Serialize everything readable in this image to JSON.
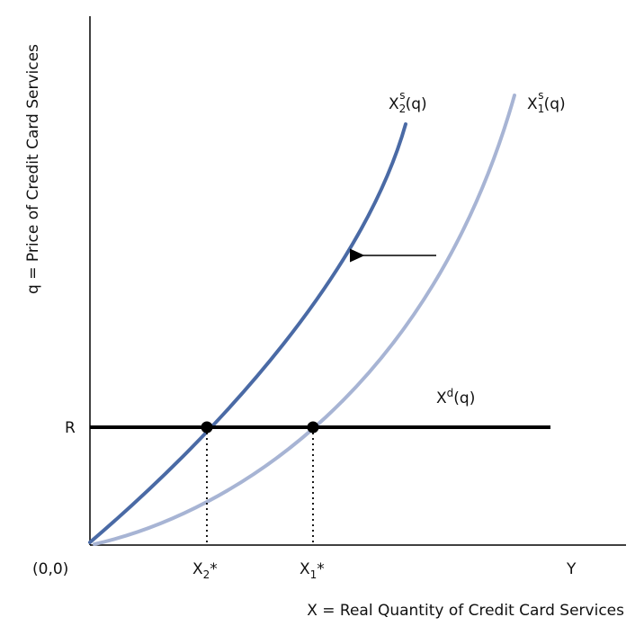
{
  "axes": {
    "y_label": "q = Price of Credit Card Services",
    "x_label": "X = Real Quantity of Credit Card Services",
    "origin_label": "(0,0)",
    "y_tick_label": "R",
    "x_end_label": "Y"
  },
  "curves": {
    "supply_2": {
      "base": "X",
      "sub": "2",
      "sup": "s",
      "arg": "(q)",
      "color": "#4a6aa5"
    },
    "supply_1": {
      "base": "X",
      "sub": "1",
      "sup": "s",
      "arg": "(q)",
      "color": "#a7b4d4"
    },
    "demand": {
      "base": "X",
      "sup": "d",
      "arg": "(q)",
      "color": "#000000"
    }
  },
  "equilibria": {
    "x2_star": {
      "base": "X",
      "sub": "2",
      "suffix": "*"
    },
    "x1_star": {
      "base": "X",
      "sub": "1",
      "suffix": "*"
    }
  },
  "shift_arrow": {
    "direction": "left",
    "color": "#000000"
  }
}
